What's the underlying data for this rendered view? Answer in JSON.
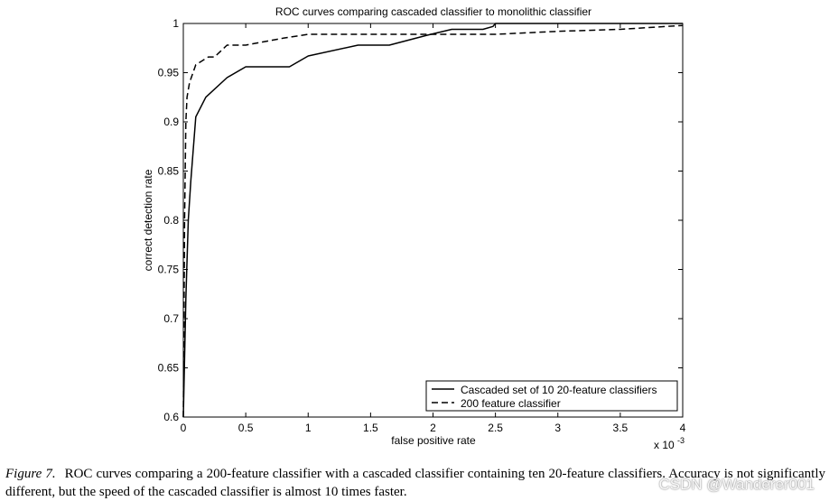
{
  "chart_data": {
    "type": "line",
    "title": "ROC curves comparing cascaded classifier to monolithic classifier",
    "xlabel": "false positive rate",
    "ylabel": "correct detection rate",
    "x_multiplier": "x 10",
    "x_multiplier_exp": "-3",
    "xlim": [
      0,
      0.004
    ],
    "ylim": [
      0.6,
      1.0
    ],
    "x_ticks": [
      0,
      0.0005,
      0.001,
      0.0015,
      0.002,
      0.0025,
      0.003,
      0.0035,
      0.004
    ],
    "x_tick_labels": [
      "0",
      "0.5",
      "1",
      "1.5",
      "2",
      "2.5",
      "3",
      "3.5",
      "4"
    ],
    "y_ticks": [
      0.6,
      0.65,
      0.7,
      0.75,
      0.8,
      0.85,
      0.9,
      0.95,
      1.0
    ],
    "y_tick_labels": [
      "0.6",
      "0.65",
      "0.7",
      "0.75",
      "0.8",
      "0.85",
      "0.9",
      "0.95",
      "1"
    ],
    "grid": false,
    "legend_position": "bottom-right",
    "series": [
      {
        "name": "Cascaded set of 10 20-feature classifiers",
        "line_style": "solid",
        "x": [
          0,
          2e-05,
          4e-05,
          6e-05,
          0.0001,
          0.00018,
          0.00035,
          0.0005,
          0.00085,
          0.001,
          0.0014,
          0.00165,
          0.00195,
          0.00215,
          0.0024,
          0.00248,
          0.0025,
          0.004
        ],
        "y": [
          0.6,
          0.72,
          0.8,
          0.84,
          0.905,
          0.925,
          0.945,
          0.956,
          0.956,
          0.967,
          0.978,
          0.978,
          0.988,
          0.994,
          0.994,
          0.997,
          1.0,
          1.0
        ]
      },
      {
        "name": "200 feature classifier",
        "line_style": "dashed",
        "x": [
          0,
          1e-05,
          2e-05,
          3e-05,
          5e-05,
          0.0001,
          0.0002,
          0.00025,
          0.00035,
          0.0005,
          0.0008,
          0.001,
          0.0015,
          0.0025,
          0.003,
          0.0035,
          0.004
        ],
        "y": [
          0.6,
          0.8,
          0.9,
          0.925,
          0.94,
          0.958,
          0.966,
          0.966,
          0.978,
          0.978,
          0.985,
          0.989,
          0.989,
          0.989,
          0.992,
          0.994,
          0.998
        ]
      }
    ]
  },
  "caption": {
    "label": "Figure 7.",
    "text": "ROC curves comparing a 200-feature classifier with a cascaded classifier containing ten 20-feature classifiers. Accuracy is not significantly different, but the speed of the cascaded classifier is almost 10 times faster."
  },
  "watermark": "CSDN @Wanderer001"
}
